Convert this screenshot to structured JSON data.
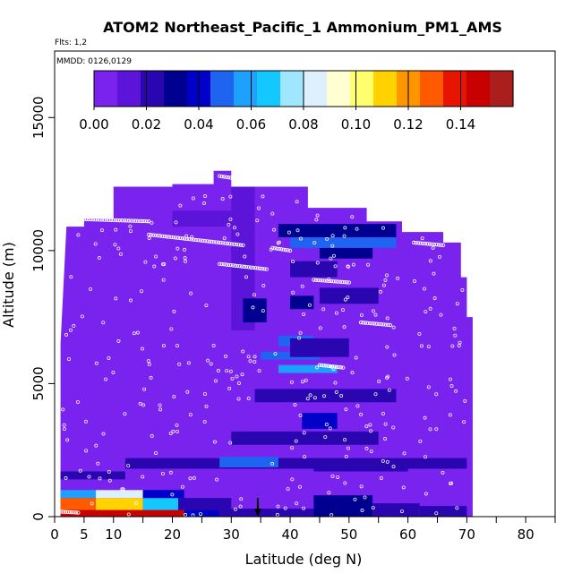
{
  "chart_data": {
    "type": "heatmap",
    "title": "ATOM2 Northeast_Pacific_1 Ammonium_PM1_AMS",
    "flights_label": "Flts: 1,2",
    "dates_label": "MMDD: 0126,0129",
    "xlabel": "Latitude (deg N)",
    "ylabel": "Altitude (m)",
    "xlim": [
      0,
      85
    ],
    "ylim": [
      0,
      17500
    ],
    "x_ticks": [
      0,
      5,
      10,
      20,
      30,
      40,
      50,
      60,
      70,
      80
    ],
    "x_minor_ticks": [
      15,
      25,
      35,
      45,
      55,
      65,
      75,
      85
    ],
    "y_ticks": [
      0,
      5000,
      10000,
      15000
    ],
    "colorbar": {
      "min": 0.0,
      "max": 0.16,
      "tick_values": [
        0.0,
        0.02,
        0.04,
        0.06,
        0.08,
        0.1,
        0.12,
        0.14
      ],
      "tick_labels": [
        "0.00",
        "0.02",
        "0.04",
        "0.06",
        "0.08",
        "0.10",
        "0.12",
        "0.14"
      ],
      "colors": [
        "#7a22ee",
        "#5b14d8",
        "#2a06b0",
        "#000090",
        "#0000c8",
        "#1e64f0",
        "#1ea0ff",
        "#14c8ff",
        "#a0e6ff",
        "#dcf0ff",
        "#ffffd2",
        "#ffff6e",
        "#ffd200",
        "#ff9600",
        "#ff5a00",
        "#e61400",
        "#c80000",
        "#aa1e1e"
      ]
    },
    "background_value": 0.005,
    "domain_top_boundary": [
      [
        1,
        0
      ],
      [
        1,
        6500
      ],
      [
        2,
        10900
      ],
      [
        5,
        10900
      ],
      [
        5,
        11200
      ],
      [
        10,
        11200
      ],
      [
        10,
        12400
      ],
      [
        20,
        12400
      ],
      [
        20,
        12500
      ],
      [
        27,
        12500
      ],
      [
        27,
        13000
      ],
      [
        30,
        13000
      ],
      [
        30,
        12400
      ],
      [
        43,
        12400
      ],
      [
        43,
        11600
      ],
      [
        53,
        11600
      ],
      [
        53,
        11100
      ],
      [
        59,
        11100
      ],
      [
        59,
        10700
      ],
      [
        66,
        10700
      ],
      [
        66,
        10300
      ],
      [
        69,
        10300
      ],
      [
        69,
        9000
      ],
      [
        70,
        9000
      ],
      [
        70,
        7500
      ],
      [
        71,
        7500
      ],
      [
        71,
        0
      ]
    ],
    "features": [
      {
        "x": [
          0,
          22
        ],
        "y": [
          0,
          250
        ],
        "value": 0.15
      },
      {
        "x": [
          22,
          28
        ],
        "y": [
          0,
          250
        ],
        "value": 0.04
      },
      {
        "x": [
          0,
          7
        ],
        "y": [
          250,
          700
        ],
        "value": 0.125
      },
      {
        "x": [
          7,
          15
        ],
        "y": [
          250,
          700
        ],
        "value": 0.11
      },
      {
        "x": [
          15,
          21
        ],
        "y": [
          250,
          700
        ],
        "value": 0.07
      },
      {
        "x": [
          21,
          30
        ],
        "y": [
          250,
          700
        ],
        "value": 0.02
      },
      {
        "x": [
          0,
          7
        ],
        "y": [
          700,
          1000
        ],
        "value": 0.06
      },
      {
        "x": [
          7,
          15
        ],
        "y": [
          700,
          1000
        ],
        "value": 0.08
      },
      {
        "x": [
          15,
          22
        ],
        "y": [
          700,
          1000
        ],
        "value": 0.04
      },
      {
        "x": [
          28,
          46
        ],
        "y": [
          0,
          300
        ],
        "value": 0.025
      },
      {
        "x": [
          44,
          54
        ],
        "y": [
          0,
          800
        ],
        "value": 0.03
      },
      {
        "x": [
          54,
          62
        ],
        "y": [
          0,
          500
        ],
        "value": 0.025
      },
      {
        "x": [
          62,
          70
        ],
        "y": [
          0,
          400
        ],
        "value": 0.02
      },
      {
        "x": [
          0,
          12
        ],
        "y": [
          1400,
          1700
        ],
        "value": 0.02
      },
      {
        "x": [
          12,
          70
        ],
        "y": [
          1800,
          2200
        ],
        "value": 0.02
      },
      {
        "x": [
          28,
          38
        ],
        "y": [
          1850,
          2250
        ],
        "value": 0.045
      },
      {
        "x": [
          44,
          60
        ],
        "y": [
          1700,
          2100
        ],
        "value": 0.02
      },
      {
        "x": [
          30,
          55
        ],
        "y": [
          2700,
          3200
        ],
        "value": 0.02
      },
      {
        "x": [
          42,
          48
        ],
        "y": [
          3300,
          3900
        ],
        "value": 0.04
      },
      {
        "x": [
          34,
          58
        ],
        "y": [
          4300,
          4800
        ],
        "value": 0.02
      },
      {
        "x": [
          38,
          48
        ],
        "y": [
          5400,
          5700
        ],
        "value": 0.06
      },
      {
        "x": [
          35,
          45
        ],
        "y": [
          5900,
          6200
        ],
        "value": 0.045
      },
      {
        "x": [
          38,
          44
        ],
        "y": [
          6400,
          6800
        ],
        "value": 0.05
      },
      {
        "x": [
          40,
          50
        ],
        "y": [
          6000,
          6700
        ],
        "value": 0.02
      },
      {
        "x": [
          40,
          44
        ],
        "y": [
          7800,
          8300
        ],
        "value": 0.035
      },
      {
        "x": [
          45,
          55
        ],
        "y": [
          8000,
          8600
        ],
        "value": 0.02
      },
      {
        "x": [
          40,
          48
        ],
        "y": [
          9000,
          9600
        ],
        "value": 0.02
      },
      {
        "x": [
          45,
          54
        ],
        "y": [
          9700,
          10100
        ],
        "value": 0.03
      },
      {
        "x": [
          40,
          58
        ],
        "y": [
          10100,
          10600
        ],
        "value": 0.045
      },
      {
        "x": [
          38,
          58
        ],
        "y": [
          10500,
          11000
        ],
        "value": 0.03
      },
      {
        "x": [
          30,
          34
        ],
        "y": [
          7000,
          12400
        ],
        "value": 0.015
      },
      {
        "x": [
          32,
          36
        ],
        "y": [
          7300,
          8200
        ],
        "value": 0.03
      },
      {
        "x": [
          43,
          53
        ],
        "y": [
          11600,
          12400
        ],
        "value": 0.02
      },
      {
        "x": [
          20,
          30
        ],
        "y": [
          10900,
          11500
        ],
        "value": 0.01
      }
    ],
    "flight_tracks": [
      {
        "x": [
          2,
          16
        ],
        "y": [
          11200,
          11100
        ]
      },
      {
        "x": [
          16,
          32
        ],
        "y": [
          10600,
          10200
        ]
      },
      {
        "x": [
          28,
          31
        ],
        "y": [
          12800,
          12700
        ]
      },
      {
        "x": [
          28,
          36
        ],
        "y": [
          9500,
          9300
        ]
      },
      {
        "x": [
          37,
          40
        ],
        "y": [
          10100,
          10000
        ]
      },
      {
        "x": [
          44,
          50
        ],
        "y": [
          8900,
          8800
        ]
      },
      {
        "x": [
          52,
          57
        ],
        "y": [
          7300,
          7200
        ]
      },
      {
        "x": [
          61,
          66
        ],
        "y": [
          10300,
          10200
        ]
      },
      {
        "x": [
          45,
          49
        ],
        "y": [
          5700,
          5600
        ]
      },
      {
        "x": [
          0,
          4
        ],
        "y": [
          200,
          150
        ]
      }
    ],
    "arrow_marker": {
      "x": 34.5,
      "y_from": 700,
      "y_to": 0
    }
  }
}
